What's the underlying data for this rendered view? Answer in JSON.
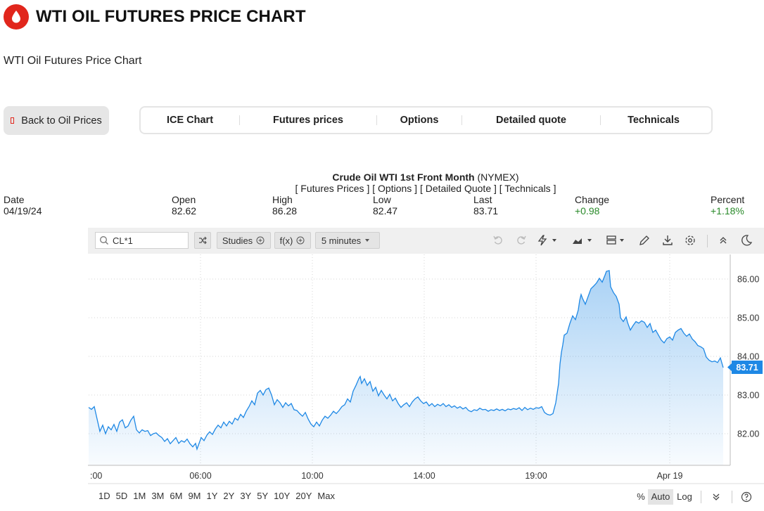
{
  "header": {
    "title": "WTI OIL FUTURES PRICE CHART",
    "subtitle": "WTI Oil Futures Price Chart",
    "logo_icon": "oil-drop-icon",
    "brand_color": "#e1261c"
  },
  "back_button": {
    "label": "Back to Oil Prices"
  },
  "tabs": [
    "ICE Chart",
    "Futures prices",
    "Options",
    "Detailed quote",
    "Technicals"
  ],
  "quote": {
    "name": "Crude Oil WTI 1st Front Month",
    "exchange": "(NYMEX)",
    "links": [
      "[ Futures Prices ]",
      "[ Options ]",
      "[ Detailed Quote ]",
      "[ Technicals ]"
    ],
    "labels": {
      "date": "Date",
      "open": "Open",
      "high": "High",
      "low": "Low",
      "last": "Last",
      "change": "Change",
      "percent": "Percent"
    },
    "values": {
      "date": "04/19/24",
      "open": "82.62",
      "high": "86.28",
      "low": "82.47",
      "last": "83.71",
      "change": "+0.98",
      "percent": "+1.18%"
    },
    "positive_color": "#2a8a2a"
  },
  "toolbar": {
    "symbol": "CL*1",
    "studies_label": "Studies",
    "fx_label": "f(x)",
    "interval_label": "5 minutes"
  },
  "ranges": [
    "1D",
    "5D",
    "1M",
    "3M",
    "6M",
    "9M",
    "1Y",
    "2Y",
    "3Y",
    "5Y",
    "10Y",
    "20Y",
    "Max"
  ],
  "scale": {
    "percent": "%",
    "auto": "Auto",
    "log": "Log",
    "active": "Auto"
  },
  "chart_data": {
    "type": "area",
    "x_tick_labels": [
      ":00",
      "06:00",
      "10:00",
      "14:00",
      "19:00",
      "Apr 19"
    ],
    "y_tick_labels": [
      "86.00",
      "85.00",
      "84.00",
      "83.00",
      "82.00"
    ],
    "ylim": [
      81.2,
      86.5
    ],
    "grid": true,
    "last_price": "83.71",
    "line_color": "#1e88e5",
    "points": [
      [
        0,
        82.68
      ],
      [
        4,
        82.63
      ],
      [
        8,
        82.7
      ],
      [
        13,
        82.3
      ],
      [
        16,
        82.06
      ],
      [
        20,
        82.22
      ],
      [
        24,
        82.0
      ],
      [
        28,
        82.18
      ],
      [
        32,
        82.1
      ],
      [
        36,
        82.24
      ],
      [
        40,
        82.06
      ],
      [
        44,
        82.3
      ],
      [
        48,
        82.36
      ],
      [
        52,
        82.15
      ],
      [
        56,
        82.2
      ],
      [
        60,
        82.35
      ],
      [
        64,
        82.45
      ],
      [
        68,
        82.1
      ],
      [
        72,
        82.02
      ],
      [
        76,
        82.1
      ],
      [
        80,
        82.06
      ],
      [
        84,
        82.08
      ],
      [
        88,
        81.95
      ],
      [
        92,
        82.0
      ],
      [
        96,
        82.02
      ],
      [
        100,
        81.95
      ],
      [
        104,
        81.9
      ],
      [
        108,
        81.8
      ],
      [
        112,
        81.87
      ],
      [
        116,
        81.74
      ],
      [
        120,
        81.82
      ],
      [
        124,
        81.9
      ],
      [
        128,
        81.75
      ],
      [
        132,
        81.82
      ],
      [
        136,
        81.78
      ],
      [
        140,
        81.86
      ],
      [
        144,
        81.74
      ],
      [
        148,
        81.66
      ],
      [
        152,
        81.75
      ],
      [
        154,
        81.6
      ],
      [
        158,
        81.8
      ],
      [
        160,
        81.9
      ],
      [
        164,
        81.82
      ],
      [
        168,
        81.96
      ],
      [
        172,
        82.05
      ],
      [
        176,
        81.98
      ],
      [
        180,
        82.12
      ],
      [
        184,
        82.22
      ],
      [
        188,
        82.15
      ],
      [
        192,
        82.3
      ],
      [
        196,
        82.2
      ],
      [
        200,
        82.32
      ],
      [
        204,
        82.25
      ],
      [
        208,
        82.4
      ],
      [
        212,
        82.35
      ],
      [
        216,
        82.5
      ],
      [
        220,
        82.42
      ],
      [
        224,
        82.58
      ],
      [
        228,
        82.7
      ],
      [
        232,
        82.85
      ],
      [
        236,
        82.75
      ],
      [
        240,
        83.05
      ],
      [
        244,
        83.12
      ],
      [
        248,
        83.0
      ],
      [
        252,
        83.14
      ],
      [
        256,
        83.18
      ],
      [
        260,
        83.0
      ],
      [
        264,
        82.75
      ],
      [
        268,
        82.88
      ],
      [
        272,
        82.8
      ],
      [
        276,
        82.68
      ],
      [
        280,
        82.8
      ],
      [
        284,
        82.72
      ],
      [
        288,
        82.78
      ],
      [
        292,
        82.62
      ],
      [
        296,
        82.6
      ],
      [
        300,
        82.52
      ],
      [
        304,
        82.45
      ],
      [
        308,
        82.55
      ],
      [
        312,
        82.38
      ],
      [
        316,
        82.25
      ],
      [
        320,
        82.18
      ],
      [
        324,
        82.3
      ],
      [
        328,
        82.2
      ],
      [
        332,
        82.35
      ],
      [
        336,
        82.45
      ],
      [
        340,
        82.4
      ],
      [
        344,
        82.48
      ],
      [
        348,
        82.58
      ],
      [
        352,
        82.52
      ],
      [
        356,
        82.6
      ],
      [
        360,
        82.7
      ],
      [
        364,
        82.75
      ],
      [
        368,
        82.9
      ],
      [
        372,
        82.82
      ],
      [
        376,
        83.1
      ],
      [
        380,
        83.25
      ],
      [
        384,
        83.42
      ],
      [
        386,
        83.48
      ],
      [
        388,
        83.3
      ],
      [
        392,
        83.42
      ],
      [
        396,
        83.25
      ],
      [
        400,
        83.35
      ],
      [
        404,
        83.1
      ],
      [
        408,
        83.2
      ],
      [
        412,
        82.98
      ],
      [
        416,
        83.12
      ],
      [
        420,
        83.0
      ],
      [
        424,
        82.9
      ],
      [
        428,
        83.02
      ],
      [
        432,
        82.85
      ],
      [
        436,
        82.92
      ],
      [
        440,
        82.78
      ],
      [
        444,
        82.68
      ],
      [
        448,
        82.75
      ],
      [
        452,
        82.8
      ],
      [
        456,
        82.7
      ],
      [
        460,
        82.82
      ],
      [
        464,
        82.9
      ],
      [
        468,
        82.95
      ],
      [
        472,
        82.85
      ],
      [
        476,
        82.78
      ],
      [
        480,
        82.82
      ],
      [
        484,
        82.72
      ],
      [
        488,
        82.78
      ],
      [
        492,
        82.7
      ],
      [
        496,
        82.76
      ],
      [
        500,
        82.72
      ],
      [
        504,
        82.78
      ],
      [
        508,
        82.7
      ],
      [
        512,
        82.75
      ],
      [
        516,
        82.68
      ],
      [
        520,
        82.72
      ],
      [
        524,
        82.66
      ],
      [
        528,
        82.7
      ],
      [
        532,
        82.64
      ],
      [
        536,
        82.68
      ],
      [
        540,
        82.6
      ],
      [
        544,
        82.57
      ],
      [
        548,
        82.62
      ],
      [
        552,
        82.6
      ],
      [
        556,
        82.66
      ],
      [
        560,
        82.62
      ],
      [
        564,
        82.63
      ],
      [
        568,
        82.58
      ],
      [
        572,
        82.62
      ],
      [
        576,
        82.6
      ],
      [
        580,
        82.64
      ],
      [
        584,
        82.6
      ],
      [
        588,
        82.63
      ],
      [
        592,
        82.59
      ],
      [
        596,
        82.64
      ],
      [
        600,
        82.62
      ],
      [
        604,
        82.65
      ],
      [
        608,
        82.63
      ],
      [
        612,
        82.67
      ],
      [
        616,
        82.6
      ],
      [
        620,
        82.68
      ],
      [
        624,
        82.62
      ],
      [
        628,
        82.66
      ],
      [
        632,
        82.63
      ],
      [
        636,
        82.67
      ],
      [
        640,
        82.66
      ],
      [
        644,
        82.7
      ],
      [
        648,
        82.55
      ],
      [
        652,
        82.5
      ],
      [
        656,
        82.48
      ],
      [
        660,
        82.52
      ],
      [
        664,
        82.8
      ],
      [
        668,
        83.3
      ],
      [
        670,
        83.8
      ],
      [
        672,
        84.1
      ],
      [
        674,
        84.3
      ],
      [
        676,
        84.55
      ],
      [
        680,
        84.6
      ],
      [
        684,
        84.85
      ],
      [
        688,
        85.05
      ],
      [
        692,
        84.95
      ],
      [
        696,
        85.2
      ],
      [
        698,
        85.45
      ],
      [
        700,
        85.6
      ],
      [
        702,
        85.5
      ],
      [
        706,
        85.35
      ],
      [
        710,
        85.55
      ],
      [
        714,
        85.75
      ],
      [
        718,
        85.82
      ],
      [
        722,
        85.9
      ],
      [
        726,
        86.02
      ],
      [
        730,
        85.92
      ],
      [
        734,
        86.1
      ],
      [
        736,
        86.2
      ],
      [
        740,
        86.22
      ],
      [
        742,
        85.8
      ],
      [
        746,
        85.65
      ],
      [
        750,
        85.55
      ],
      [
        754,
        85.35
      ],
      [
        756,
        85.0
      ],
      [
        760,
        84.9
      ],
      [
        764,
        85.02
      ],
      [
        766,
        84.88
      ],
      [
        770,
        84.68
      ],
      [
        774,
        84.8
      ],
      [
        778,
        84.9
      ],
      [
        782,
        84.86
      ],
      [
        786,
        84.92
      ],
      [
        790,
        84.88
      ],
      [
        794,
        84.75
      ],
      [
        798,
        84.85
      ],
      [
        802,
        84.62
      ],
      [
        806,
        84.68
      ],
      [
        810,
        84.55
      ],
      [
        814,
        84.42
      ],
      [
        818,
        84.35
      ],
      [
        822,
        84.46
      ],
      [
        826,
        84.5
      ],
      [
        830,
        84.42
      ],
      [
        834,
        84.62
      ],
      [
        838,
        84.68
      ],
      [
        842,
        84.72
      ],
      [
        846,
        84.6
      ],
      [
        850,
        84.52
      ],
      [
        854,
        84.58
      ],
      [
        858,
        84.45
      ],
      [
        862,
        84.38
      ],
      [
        866,
        84.28
      ],
      [
        870,
        84.25
      ],
      [
        874,
        84.2
      ],
      [
        878,
        83.98
      ],
      [
        882,
        83.9
      ],
      [
        886,
        83.86
      ],
      [
        890,
        83.88
      ],
      [
        894,
        83.84
      ],
      [
        898,
        83.96
      ],
      [
        902,
        83.71
      ]
    ]
  }
}
